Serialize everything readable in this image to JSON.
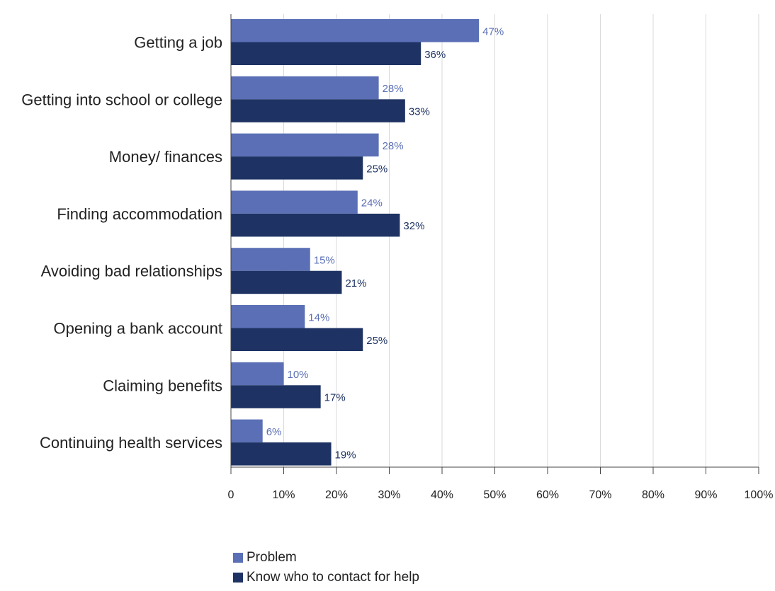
{
  "chart_data": {
    "type": "bar",
    "orientation": "horizontal",
    "categories": [
      "Getting a job",
      "Getting into school or college",
      "Money/ finances",
      "Finding accommodation",
      "Avoiding bad relationships",
      "Opening a bank account",
      "Claiming benefits",
      "Continuing health services"
    ],
    "series": [
      {
        "name": "Problem",
        "color": "#5a6fb5",
        "values": [
          47,
          28,
          28,
          24,
          15,
          14,
          10,
          6
        ]
      },
      {
        "name": "Know who to contact for help",
        "color": "#1e3363",
        "values": [
          36,
          33,
          25,
          32,
          21,
          25,
          17,
          19
        ]
      }
    ],
    "value_suffix": "%",
    "xlim": [
      0,
      100
    ],
    "xticks": [
      0,
      10,
      20,
      30,
      40,
      50,
      60,
      70,
      80,
      90,
      100
    ],
    "xtick_labels": [
      "0",
      "10%",
      "20%",
      "30%",
      "40%",
      "50%",
      "60%",
      "70%",
      "80%",
      "90%",
      "100%"
    ],
    "grid": "vertical",
    "legend_position": "bottom-left",
    "title": "",
    "xlabel": "",
    "ylabel": ""
  },
  "legend": {
    "items": [
      {
        "label": "Problem",
        "color": "#5a6fb5"
      },
      {
        "label": "Know who to contact for help",
        "color": "#1e3363"
      }
    ]
  }
}
